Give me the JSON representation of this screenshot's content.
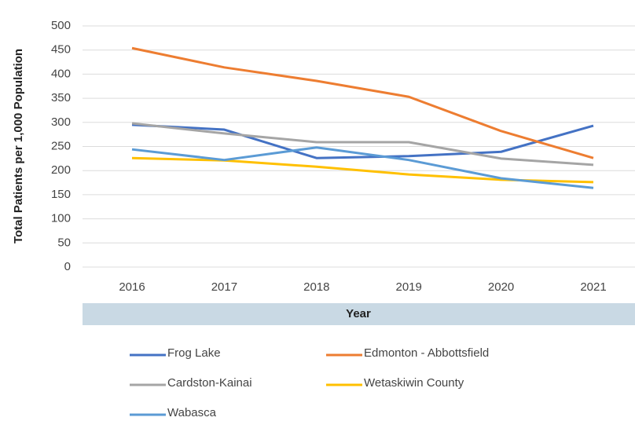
{
  "chart_data": {
    "type": "line",
    "x_label": "Year",
    "y_label": "Total Patients per 1,000 Population",
    "categories": [
      "2016",
      "2017",
      "2018",
      "2019",
      "2020",
      "2021"
    ],
    "series": [
      {
        "name": "Frog Lake",
        "color": "#4472c4",
        "values": [
          295,
          285,
          226,
          230,
          239,
          293
        ]
      },
      {
        "name": "Edmonton - Abbottsfield",
        "color": "#ed7d31",
        "values": [
          454,
          414,
          386,
          353,
          282,
          226
        ]
      },
      {
        "name": "Cardston-Kainai",
        "color": "#a5a5a5",
        "values": [
          298,
          277,
          259,
          259,
          225,
          212
        ]
      },
      {
        "name": "Wetaskiwin County",
        "color": "#ffc000",
        "values": [
          226,
          221,
          208,
          192,
          181,
          176
        ]
      },
      {
        "name": "Wabasca",
        "color": "#5b9bd5",
        "values": [
          244,
          222,
          248,
          222,
          184,
          164
        ]
      }
    ],
    "ylim": [
      0,
      500
    ],
    "yticks": [
      0,
      50,
      100,
      150,
      200,
      250,
      300,
      350,
      400,
      450,
      500
    ],
    "grid": true,
    "legend": "bottom"
  }
}
